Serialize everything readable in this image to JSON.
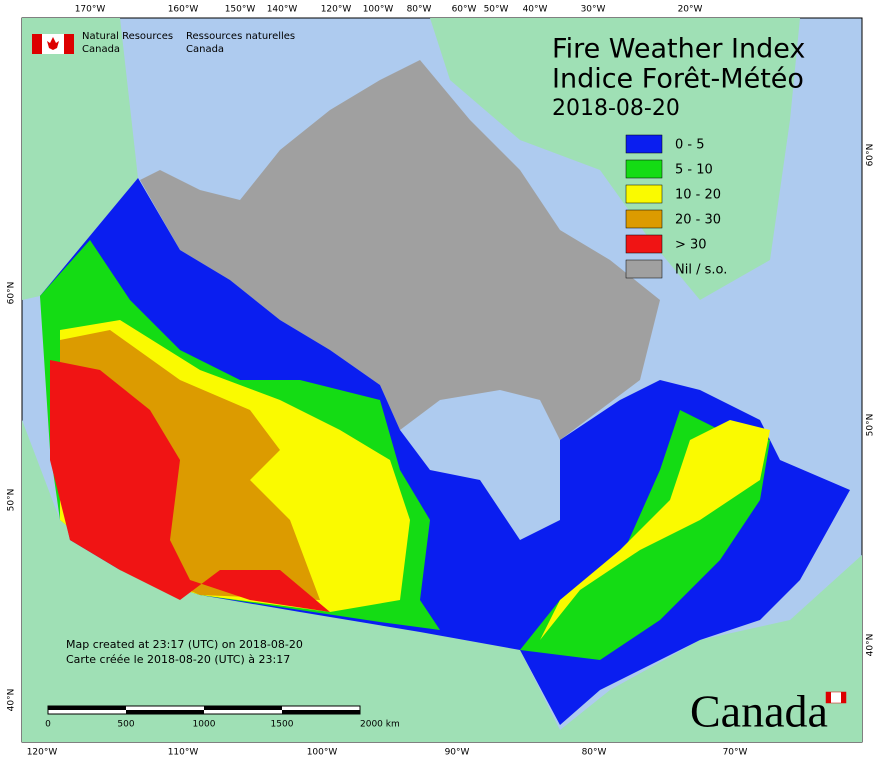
{
  "header": {
    "org_en": [
      "Natural Resources",
      "Canada"
    ],
    "org_fr": [
      "Ressources naturelles",
      "Canada"
    ]
  },
  "title": {
    "en": "Fire Weather Index",
    "fr": "Indice Forêt-Météo",
    "date": "2018-08-20"
  },
  "legend": [
    {
      "label": "0 - 5",
      "color": "#0a1ef0"
    },
    {
      "label": "5 - 10",
      "color": "#14dc14"
    },
    {
      "label": "10 - 20",
      "color": "#fafa00"
    },
    {
      "label": "20 - 30",
      "color": "#dc9b00"
    },
    {
      "label": "> 30",
      "color": "#f01414"
    },
    {
      "label": "Nil / s.o.",
      "color": "#a0a0a0"
    }
  ],
  "notes": [
    "Map created at 23:17 (UTC) on 2018-08-20",
    "Carte créée le 2018-08-20 (UTC) à 23:17"
  ],
  "scale": [
    "0",
    "500",
    "1000",
    "1500",
    "2000 km"
  ],
  "graticule": {
    "top": [
      "170°W",
      "160°W",
      "150°W",
      "140°W",
      "120°W",
      "100°W",
      "80°W",
      "60°W",
      "50°W",
      "40°W",
      "30°W",
      "20°W"
    ],
    "bottom": [
      "120°W",
      "110°W",
      "100°W",
      "90°W",
      "80°W",
      "70°W"
    ],
    "left": [
      "60°N",
      "50°N",
      "40°N"
    ],
    "right": [
      "60°N",
      "50°N",
      "40°N"
    ]
  },
  "wordmark": "Canada"
}
